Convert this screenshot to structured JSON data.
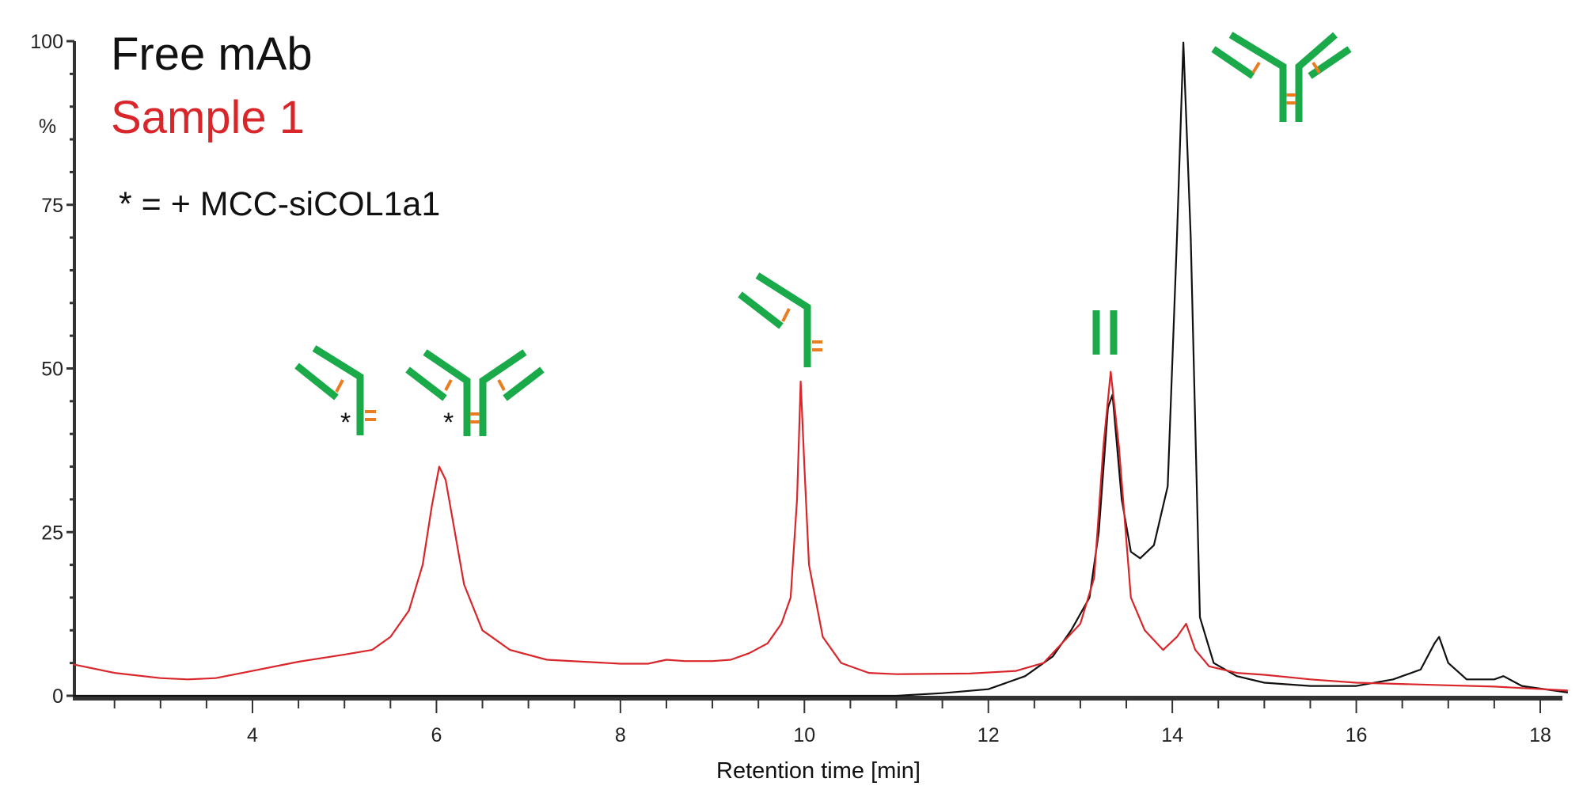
{
  "chart_data": {
    "type": "line",
    "title": "",
    "xlabel": "Retention time [min]",
    "ylabel": "%",
    "xlim": [
      2.05,
      18.3
    ],
    "ylim": [
      0,
      100
    ],
    "x_ticks": [
      4,
      6,
      8,
      10,
      12,
      14,
      16,
      18
    ],
    "y_ticks": [
      0,
      25,
      50,
      75,
      100
    ],
    "grid": false,
    "legend_placement": "top-left",
    "series": [
      {
        "name": "Free mAb",
        "color": "#111111",
        "points": [
          [
            2.05,
            0
          ],
          [
            11,
            0
          ],
          [
            11.5,
            0.4
          ],
          [
            12,
            1
          ],
          [
            12.4,
            3
          ],
          [
            12.7,
            6
          ],
          [
            12.9,
            10
          ],
          [
            13.1,
            15
          ],
          [
            13.2,
            25
          ],
          [
            13.3,
            44
          ],
          [
            13.35,
            46
          ],
          [
            13.45,
            30
          ],
          [
            13.55,
            22
          ],
          [
            13.65,
            21
          ],
          [
            13.8,
            23
          ],
          [
            13.95,
            32
          ],
          [
            14.05,
            70
          ],
          [
            14.12,
            99.8
          ],
          [
            14.2,
            70
          ],
          [
            14.3,
            12
          ],
          [
            14.45,
            5
          ],
          [
            14.7,
            3
          ],
          [
            15,
            2
          ],
          [
            15.5,
            1.5
          ],
          [
            16,
            1.5
          ],
          [
            16.4,
            2.5
          ],
          [
            16.7,
            4
          ],
          [
            16.85,
            8
          ],
          [
            16.9,
            9
          ],
          [
            17.0,
            5
          ],
          [
            17.2,
            2.5
          ],
          [
            17.5,
            2.5
          ],
          [
            17.6,
            3
          ],
          [
            17.8,
            1.5
          ],
          [
            18.3,
            0.5
          ]
        ]
      },
      {
        "name": "Sample 1",
        "color": "#d9262b",
        "points": [
          [
            2.05,
            4.8
          ],
          [
            2.5,
            3.5
          ],
          [
            3,
            2.7
          ],
          [
            3.3,
            2.5
          ],
          [
            3.6,
            2.7
          ],
          [
            4,
            3.8
          ],
          [
            4.5,
            5.2
          ],
          [
            5,
            6.3
          ],
          [
            5.3,
            7
          ],
          [
            5.5,
            9
          ],
          [
            5.7,
            13
          ],
          [
            5.85,
            20
          ],
          [
            5.95,
            29
          ],
          [
            6.03,
            35
          ],
          [
            6.1,
            33
          ],
          [
            6.2,
            25
          ],
          [
            6.3,
            17
          ],
          [
            6.5,
            10
          ],
          [
            6.8,
            7
          ],
          [
            7.2,
            5.5
          ],
          [
            7.6,
            5.2
          ],
          [
            8,
            4.9
          ],
          [
            8.3,
            4.9
          ],
          [
            8.5,
            5.5
          ],
          [
            8.7,
            5.3
          ],
          [
            9,
            5.3
          ],
          [
            9.2,
            5.5
          ],
          [
            9.4,
            6.5
          ],
          [
            9.6,
            8
          ],
          [
            9.75,
            11
          ],
          [
            9.85,
            15
          ],
          [
            9.92,
            30
          ],
          [
            9.96,
            48
          ],
          [
            10.0,
            35
          ],
          [
            10.05,
            20
          ],
          [
            10.2,
            9
          ],
          [
            10.4,
            5
          ],
          [
            10.7,
            3.5
          ],
          [
            11,
            3.3
          ],
          [
            11.8,
            3.4
          ],
          [
            12.3,
            3.8
          ],
          [
            12.6,
            5
          ],
          [
            12.8,
            8
          ],
          [
            13.0,
            11
          ],
          [
            13.15,
            18
          ],
          [
            13.25,
            38
          ],
          [
            13.33,
            49.5
          ],
          [
            13.42,
            38
          ],
          [
            13.55,
            15
          ],
          [
            13.7,
            10
          ],
          [
            13.9,
            7
          ],
          [
            14.05,
            9
          ],
          [
            14.15,
            11
          ],
          [
            14.25,
            7
          ],
          [
            14.4,
            4.5
          ],
          [
            14.7,
            3.5
          ],
          [
            15,
            3.2
          ],
          [
            15.5,
            2.5
          ],
          [
            16,
            2.0
          ],
          [
            17,
            1.6
          ],
          [
            17.5,
            1.4
          ],
          [
            18.3,
            0.8
          ]
        ]
      }
    ],
    "annotations": {
      "note": "* = + MCC-siCOL1a1",
      "star": "*"
    },
    "icon_colors": {
      "chain": "#1aaa4a",
      "disulfide": "#e87d22"
    }
  }
}
